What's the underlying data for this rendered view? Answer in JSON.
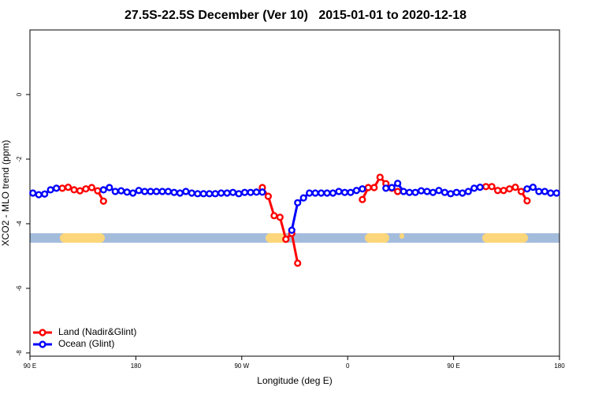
{
  "chart_data": {
    "type": "line",
    "title": "27.5S-22.5S December (Ver 10)   2015-01-01 to 2020-12-18",
    "x_label": "Longitude (deg E)",
    "y_label": "XCO2 - MLO trend (ppm)",
    "xlim": [
      90,
      540
    ],
    "ylim": [
      -8.1,
      2
    ],
    "xticks": [
      {
        "value": 90,
        "label": "90 E"
      },
      {
        "value": 180,
        "label": "180"
      },
      {
        "value": 270,
        "label": "90 W"
      },
      {
        "value": 360,
        "label": "0"
      },
      {
        "value": 450,
        "label": "90 E"
      },
      {
        "value": 540,
        "label": "180"
      }
    ],
    "yticks": [
      0,
      -2,
      -4,
      -6,
      -8
    ],
    "legend": "bottom-left",
    "x": [
      92.5,
      97.5,
      102.5,
      107.5,
      112.5,
      117.5,
      122.5,
      127.5,
      132.5,
      137.5,
      142.5,
      147.5,
      152.5,
      157.5,
      162.5,
      167.5,
      172.5,
      177.5,
      182.5,
      187.5,
      192.5,
      197.5,
      202.5,
      207.5,
      212.5,
      217.5,
      222.5,
      227.5,
      232.5,
      237.5,
      242.5,
      247.5,
      252.5,
      257.5,
      262.5,
      267.5,
      272.5,
      277.5,
      282.5,
      287.5,
      292.5,
      297.5,
      302.5,
      307.5,
      312.5,
      317.5,
      322.5,
      327.5,
      332.5,
      337.5,
      342.5,
      347.5,
      352.5,
      357.5,
      362.5,
      367.5,
      372.5,
      377.5,
      382.5,
      387.5,
      392.5,
      397.5,
      402.5,
      407.5,
      412.5,
      417.5,
      422.5,
      427.5,
      432.5,
      437.5,
      442.5,
      447.5,
      452.5,
      457.5,
      462.5,
      467.5,
      472.5,
      477.5,
      482.5,
      487.5,
      492.5,
      497.5,
      502.5,
      507.5,
      512.5,
      517.5,
      522.5,
      527.5,
      532.5,
      537.5
    ],
    "series": [
      {
        "name": "Land (Nadir&Glint)",
        "color": "#ff0000",
        "values": [
          null,
          null,
          null,
          null,
          null,
          -2.9,
          -2.87,
          -2.95,
          -2.98,
          -2.92,
          -2.88,
          -2.98,
          -3.3,
          null,
          null,
          null,
          null,
          null,
          null,
          null,
          null,
          null,
          null,
          null,
          null,
          null,
          null,
          null,
          null,
          null,
          null,
          null,
          null,
          null,
          null,
          null,
          null,
          null,
          null,
          -2.88,
          -3.15,
          -3.75,
          -3.8,
          -4.48,
          -4.3,
          -5.22,
          null,
          null,
          null,
          null,
          null,
          null,
          null,
          null,
          null,
          null,
          -3.25,
          -2.88,
          -2.88,
          -2.56,
          -2.76,
          -2.9,
          -3.0,
          null,
          null,
          null,
          null,
          null,
          null,
          null,
          null,
          null,
          null,
          null,
          null,
          null,
          null,
          -2.85,
          -2.85,
          -2.97,
          -2.97,
          -2.92,
          -2.87,
          -3.0,
          -3.29,
          null,
          null,
          null,
          null,
          null
        ]
      },
      {
        "name": "Ocean (Glint)",
        "color": "#0000ff",
        "values": [
          -3.05,
          -3.1,
          -3.08,
          -2.95,
          -2.9,
          null,
          null,
          null,
          null,
          null,
          null,
          null,
          -2.95,
          -2.88,
          -3.0,
          -2.98,
          -3.02,
          -3.05,
          -2.97,
          -3.0,
          -3.0,
          -3.0,
          -3.0,
          -3.0,
          -3.03,
          -3.05,
          -3.0,
          -3.05,
          -3.07,
          -3.07,
          -3.07,
          -3.07,
          -3.05,
          -3.05,
          -3.03,
          -3.07,
          -3.03,
          -3.03,
          -3.02,
          -3.02,
          null,
          null,
          null,
          null,
          -4.2,
          -3.35,
          -3.2,
          -3.05,
          -3.05,
          -3.05,
          -3.05,
          -3.05,
          -3.0,
          -3.03,
          -3.03,
          -2.97,
          -2.92,
          null,
          null,
          null,
          -2.9,
          -2.88,
          -2.75,
          -3.0,
          -3.03,
          -3.03,
          -2.98,
          -3.0,
          -3.03,
          -2.97,
          -3.03,
          -3.07,
          -3.03,
          -3.05,
          -3.0,
          -2.9,
          -2.87,
          null,
          null,
          null,
          null,
          null,
          null,
          null,
          -2.92,
          -2.87,
          -3.0,
          -3.0,
          -3.05,
          -3.05
        ]
      }
    ]
  }
}
